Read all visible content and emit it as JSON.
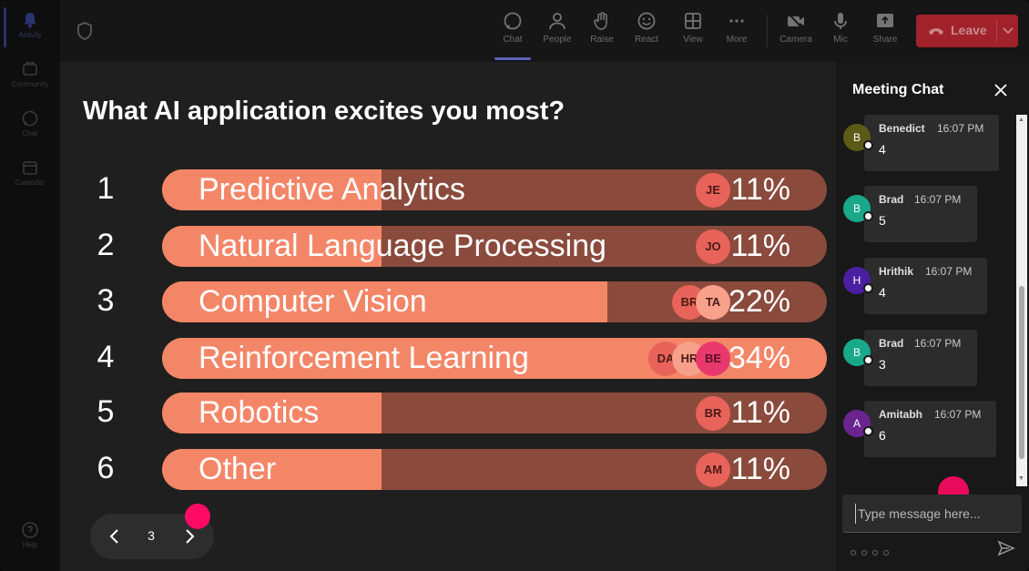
{
  "rail": {
    "items": [
      {
        "label": "Activity",
        "icon": "bell-icon"
      },
      {
        "label": "Community",
        "icon": "community-icon"
      },
      {
        "label": "Chat",
        "icon": "chat-icon"
      },
      {
        "label": "Calendar",
        "icon": "calendar-icon"
      },
      {
        "label": "Help",
        "icon": "help-icon"
      }
    ]
  },
  "toolbar": {
    "items": [
      {
        "label": "Chat",
        "icon": "chat-icon"
      },
      {
        "label": "People",
        "icon": "people-icon"
      },
      {
        "label": "Raise",
        "icon": "hand-icon"
      },
      {
        "label": "React",
        "icon": "smiley-icon"
      },
      {
        "label": "View",
        "icon": "grid-icon"
      },
      {
        "label": "More",
        "icon": "more-icon"
      },
      {
        "label": "Camera",
        "icon": "camera-off-icon"
      },
      {
        "label": "Mic",
        "icon": "mic-icon"
      },
      {
        "label": "Share",
        "icon": "share-icon"
      }
    ],
    "leave_label": "Leave"
  },
  "poll": {
    "question": "What AI application excites you most?",
    "options": [
      {
        "num": "1",
        "label": "Predictive Analytics",
        "percent": "11%",
        "fill": 0.33,
        "avatars": [
          "JE"
        ]
      },
      {
        "num": "2",
        "label": "Natural Language Processing",
        "percent": "11%",
        "fill": 0.33,
        "avatars": [
          "JO"
        ]
      },
      {
        "num": "3",
        "label": "Computer Vision",
        "percent": "22%",
        "fill": 0.67,
        "avatars": [
          "BR",
          "TA"
        ]
      },
      {
        "num": "4",
        "label": "Reinforcement Learning",
        "percent": "34%",
        "fill": 1.0,
        "avatars": [
          "DA",
          "HR",
          "BE"
        ]
      },
      {
        "num": "5",
        "label": "Robotics",
        "percent": "11%",
        "fill": 0.33,
        "avatars": [
          "BR"
        ]
      },
      {
        "num": "6",
        "label": "Other",
        "percent": "11%",
        "fill": 0.33,
        "avatars": [
          "AM"
        ]
      }
    ],
    "page": "3"
  },
  "chat": {
    "title": "Meeting Chat",
    "messages": [
      {
        "initial": "B",
        "name": "Benedict",
        "time": "16:07 PM",
        "text": "4",
        "color": "#5b5a16"
      },
      {
        "initial": "B",
        "name": "Brad",
        "time": "16:07 PM",
        "text": "5",
        "color": "#1aa88a"
      },
      {
        "initial": "H",
        "name": "Hrithik",
        "time": "16:07 PM",
        "text": "4",
        "color": "#4a1ea0"
      },
      {
        "initial": "B",
        "name": "Brad",
        "time": "16:07 PM",
        "text": "3",
        "color": "#1aa88a"
      },
      {
        "initial": "A",
        "name": "Amitabh",
        "time": "16:07 PM",
        "text": "6",
        "color": "#6a2490"
      }
    ],
    "composer_placeholder": "Type message here..."
  },
  "colors": {
    "bar_fill": "#f48668",
    "bar_track": "#8a4a3c",
    "leave": "#a1222a",
    "cursor": "#ff0a64"
  }
}
